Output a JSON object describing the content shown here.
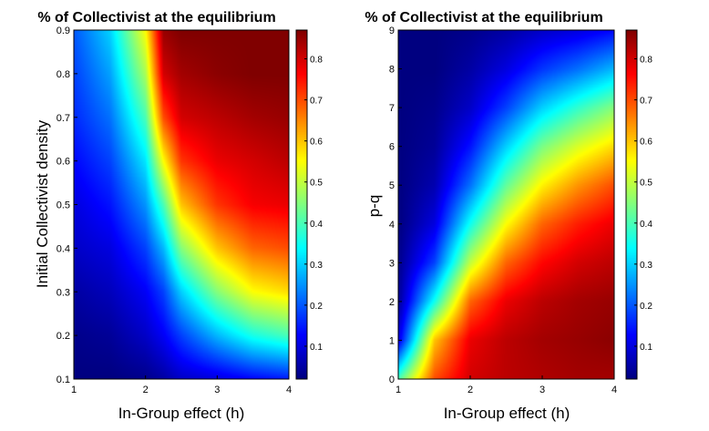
{
  "chart_data": [
    {
      "type": "heatmap",
      "title": "% of Collectivist at the equilibrium",
      "xlabel": "In-Group effect (h)",
      "ylabel": "Initial Collectivist density",
      "xlim": [
        1,
        4
      ],
      "ylim": [
        0.1,
        0.9
      ],
      "x_ticks": [
        1,
        2,
        3,
        4
      ],
      "y_ticks": [
        0.1,
        0.2,
        0.3,
        0.4,
        0.5,
        0.6,
        0.7,
        0.8,
        0.9
      ],
      "colormap": "jet",
      "color_range": [
        0.02,
        0.87
      ],
      "colorbar_ticks": [
        0.1,
        0.2,
        0.3,
        0.4,
        0.5,
        0.6,
        0.7,
        0.8
      ],
      "x": [
        1.0,
        1.5,
        2.0,
        2.25,
        2.5,
        3.0,
        3.5,
        4.0
      ],
      "y": [
        0.1,
        0.2,
        0.3,
        0.4,
        0.5,
        0.6,
        0.7,
        0.8,
        0.9
      ],
      "z": [
        [
          0.02,
          0.02,
          0.03,
          0.05,
          0.08,
          0.1,
          0.13,
          0.15
        ],
        [
          0.03,
          0.04,
          0.08,
          0.12,
          0.18,
          0.28,
          0.36,
          0.4
        ],
        [
          0.05,
          0.07,
          0.12,
          0.18,
          0.3,
          0.45,
          0.55,
          0.58
        ],
        [
          0.08,
          0.1,
          0.18,
          0.28,
          0.45,
          0.6,
          0.68,
          0.7
        ],
        [
          0.1,
          0.14,
          0.25,
          0.4,
          0.6,
          0.72,
          0.77,
          0.78
        ],
        [
          0.13,
          0.18,
          0.32,
          0.55,
          0.72,
          0.78,
          0.8,
          0.82
        ],
        [
          0.16,
          0.22,
          0.4,
          0.7,
          0.8,
          0.82,
          0.84,
          0.85
        ],
        [
          0.18,
          0.26,
          0.48,
          0.8,
          0.84,
          0.86,
          0.87,
          0.87
        ],
        [
          0.2,
          0.3,
          0.55,
          0.85,
          0.87,
          0.87,
          0.87,
          0.87
        ]
      ]
    },
    {
      "type": "heatmap",
      "title": "% of Collectivist at the equilibrium",
      "xlabel": "In-Group effect (h)",
      "ylabel": "p-q",
      "xlim": [
        1,
        4
      ],
      "ylim": [
        0,
        9
      ],
      "x_ticks": [
        1,
        2,
        3,
        4
      ],
      "y_ticks": [
        0,
        1,
        2,
        3,
        4,
        5,
        6,
        7,
        8,
        9
      ],
      "colormap": "jet",
      "color_range": [
        0.02,
        0.87
      ],
      "colorbar_ticks": [
        0.1,
        0.2,
        0.3,
        0.4,
        0.5,
        0.6,
        0.7,
        0.8
      ],
      "x": [
        1.0,
        1.5,
        2.0,
        2.5,
        3.0,
        3.5,
        4.0
      ],
      "y": [
        0,
        1,
        2,
        3,
        4,
        5,
        6,
        7,
        8,
        9
      ],
      "z": [
        [
          0.4,
          0.7,
          0.8,
          0.82,
          0.83,
          0.84,
          0.84
        ],
        [
          0.1,
          0.6,
          0.78,
          0.82,
          0.84,
          0.85,
          0.86
        ],
        [
          0.04,
          0.35,
          0.68,
          0.78,
          0.82,
          0.84,
          0.85
        ],
        [
          0.03,
          0.18,
          0.5,
          0.68,
          0.76,
          0.8,
          0.82
        ],
        [
          0.02,
          0.1,
          0.35,
          0.55,
          0.68,
          0.74,
          0.78
        ],
        [
          0.02,
          0.06,
          0.22,
          0.42,
          0.56,
          0.64,
          0.7
        ],
        [
          0.02,
          0.04,
          0.14,
          0.3,
          0.44,
          0.52,
          0.58
        ],
        [
          0.02,
          0.03,
          0.08,
          0.18,
          0.3,
          0.38,
          0.45
        ],
        [
          0.02,
          0.02,
          0.05,
          0.1,
          0.17,
          0.22,
          0.28
        ],
        [
          0.02,
          0.02,
          0.03,
          0.05,
          0.08,
          0.1,
          0.13
        ]
      ]
    }
  ]
}
